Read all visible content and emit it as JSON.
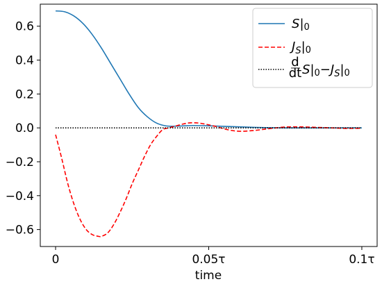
{
  "chart_data": {
    "type": "line",
    "title": "",
    "xlabel": "time",
    "ylabel": "",
    "xlim": [
      -0.005,
      0.105
    ],
    "ylim": [
      -0.7,
      0.73
    ],
    "x_ticks": [
      {
        "value": 0,
        "label": "0"
      },
      {
        "value": 0.05,
        "label": "0.05τ"
      },
      {
        "value": 0.1,
        "label": "0.1τ"
      }
    ],
    "y_ticks": [
      {
        "value": 0.6,
        "label": "0.6"
      },
      {
        "value": 0.4,
        "label": "0.4"
      },
      {
        "value": 0.2,
        "label": "0.2"
      },
      {
        "value": 0.0,
        "label": "0.0"
      },
      {
        "value": -0.2,
        "label": "−0.2"
      },
      {
        "value": -0.4,
        "label": "−0.4"
      },
      {
        "value": -0.6,
        "label": "−0.6"
      }
    ],
    "grid": false,
    "legend_position": "top-right",
    "series": [
      {
        "name": "S|0",
        "color": "#1f77b4",
        "style": "solid",
        "x": [
          0,
          0.003,
          0.006,
          0.009,
          0.012,
          0.015,
          0.018,
          0.021,
          0.024,
          0.027,
          0.03,
          0.033,
          0.036,
          0.039,
          0.042,
          0.045,
          0.05,
          0.055,
          0.06,
          0.065,
          0.07,
          0.075,
          0.08,
          0.085,
          0.09,
          0.095,
          0.1
        ],
        "y": [
          0.69,
          0.685,
          0.66,
          0.615,
          0.55,
          0.47,
          0.38,
          0.29,
          0.2,
          0.12,
          0.065,
          0.028,
          0.012,
          0.01,
          0.012,
          0.014,
          0.012,
          0.009,
          0.006,
          0.003,
          0.001,
          0.0,
          0.0,
          0.0,
          0.0,
          0.0,
          0.0
        ]
      },
      {
        "name": "JS|0",
        "color": "#ff0000",
        "style": "dashed",
        "x": [
          0,
          0.002,
          0.004,
          0.006,
          0.008,
          0.01,
          0.012,
          0.014,
          0.015,
          0.017,
          0.019,
          0.021,
          0.023,
          0.025,
          0.027,
          0.029,
          0.031,
          0.033,
          0.035,
          0.037,
          0.039,
          0.041,
          0.043,
          0.045,
          0.047,
          0.05,
          0.053,
          0.056,
          0.06,
          0.065,
          0.07,
          0.075,
          0.08,
          0.085,
          0.09,
          0.095,
          0.1
        ],
        "y": [
          -0.04,
          -0.18,
          -0.33,
          -0.45,
          -0.54,
          -0.6,
          -0.63,
          -0.64,
          -0.64,
          -0.62,
          -0.57,
          -0.5,
          -0.42,
          -0.33,
          -0.25,
          -0.17,
          -0.1,
          -0.05,
          -0.01,
          0.0,
          0.01,
          0.02,
          0.028,
          0.03,
          0.028,
          0.018,
          0.005,
          -0.01,
          -0.02,
          -0.015,
          -0.004,
          0.005,
          0.006,
          0.003,
          0.0,
          -0.003,
          -0.002
        ]
      },
      {
        "name": "d/dt S|0 − JS|0",
        "color": "#000000",
        "style": "dotted",
        "x": [
          0,
          0.1
        ],
        "y": [
          0,
          0
        ]
      }
    ]
  }
}
